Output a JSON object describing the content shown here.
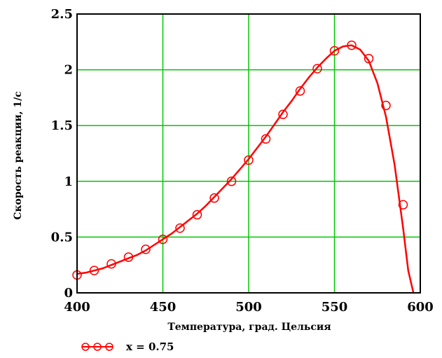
{
  "chart_data": {
    "type": "line",
    "xlabel": "Температура, град. Цельсия",
    "ylabel": "Скорость реакции, 1/с",
    "xlim": [
      400,
      600
    ],
    "ylim": [
      0,
      2.5
    ],
    "x_ticks": [
      "400",
      "450",
      "500",
      "550",
      "600"
    ],
    "y_ticks": [
      "0",
      "0.5",
      "1",
      "1.5",
      "2",
      "2.5"
    ],
    "grid": true,
    "legend_position": "bottom-left",
    "colors": {
      "series": "#ff0000",
      "grid": "#00c800",
      "frame": "#000000"
    },
    "series": [
      {
        "name": "x = 0.75",
        "style": "line",
        "x": [
          400,
          405,
          410,
          415,
          420,
          425,
          430,
          435,
          440,
          445,
          450,
          455,
          460,
          465,
          470,
          475,
          480,
          485,
          490,
          495,
          500,
          505,
          510,
          515,
          520,
          525,
          530,
          535,
          540,
          545,
          550,
          555,
          560,
          565,
          570,
          575,
          580,
          585,
          590,
          593,
          596
        ],
        "values": [
          0.17,
          0.18,
          0.2,
          0.22,
          0.25,
          0.28,
          0.31,
          0.34,
          0.38,
          0.43,
          0.48,
          0.53,
          0.59,
          0.65,
          0.71,
          0.78,
          0.86,
          0.94,
          1.02,
          1.11,
          1.2,
          1.3,
          1.4,
          1.51,
          1.62,
          1.72,
          1.83,
          1.93,
          2.02,
          2.1,
          2.17,
          2.21,
          2.22,
          2.18,
          2.08,
          1.88,
          1.58,
          1.15,
          0.58,
          0.2,
          0.0
        ]
      },
      {
        "name": "x = 0.75",
        "style": "markers",
        "x": [
          400,
          410,
          420,
          430,
          440,
          450,
          460,
          470,
          480,
          490,
          500,
          510,
          520,
          530,
          540,
          550,
          560,
          570,
          580,
          590
        ],
        "values": [
          0.16,
          0.2,
          0.26,
          0.32,
          0.39,
          0.48,
          0.58,
          0.7,
          0.85,
          1.0,
          1.19,
          1.38,
          1.6,
          1.81,
          2.01,
          2.17,
          2.22,
          2.1,
          1.68,
          0.79
        ]
      }
    ]
  }
}
